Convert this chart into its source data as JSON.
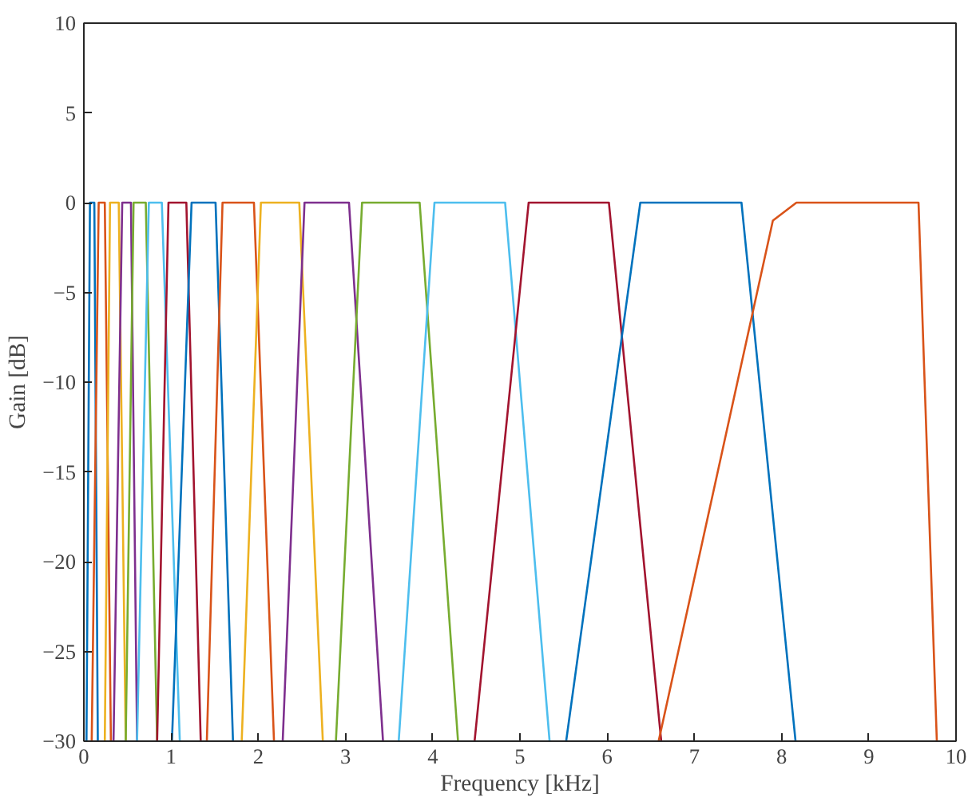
{
  "chart_data": {
    "type": "line",
    "xlabel": "Frequency [kHz]",
    "ylabel": "Gain [dB]",
    "xlim": [
      0,
      10
    ],
    "ylim": [
      -30,
      10
    ],
    "xticks": [
      0,
      1,
      2,
      3,
      4,
      5,
      6,
      7,
      8,
      9,
      10
    ],
    "yticks": [
      -30,
      -25,
      -20,
      -15,
      -10,
      -5,
      0,
      5,
      10
    ],
    "grid": false,
    "marker": "none",
    "line_style": "solid",
    "series": [
      {
        "color": "#0072bd",
        "x": [
          0.03,
          0.07,
          0.12,
          0.16
        ],
        "values": [
          -30,
          0,
          0,
          -30
        ]
      },
      {
        "color": "#d95319",
        "x": [
          0.09,
          0.17,
          0.24,
          0.31
        ],
        "values": [
          -30,
          0,
          0,
          -30
        ]
      },
      {
        "color": "#edb120",
        "x": [
          0.24,
          0.3,
          0.4,
          0.48
        ],
        "values": [
          -30,
          0,
          0,
          -30
        ]
      },
      {
        "color": "#7e2f8e",
        "x": [
          0.34,
          0.44,
          0.54,
          0.61
        ],
        "values": [
          -30,
          0,
          0,
          -30
        ]
      },
      {
        "color": "#77ac30",
        "x": [
          0.48,
          0.57,
          0.71,
          0.84
        ],
        "values": [
          -30,
          0,
          0,
          -30
        ]
      },
      {
        "color": "#4dbeee",
        "x": [
          0.61,
          0.745,
          0.894,
          1.1
        ],
        "values": [
          -30,
          0,
          0,
          -30
        ]
      },
      {
        "color": "#a2142f",
        "x": [
          0.84,
          0.97,
          1.175,
          1.34
        ],
        "values": [
          -30,
          0,
          0,
          -30
        ]
      },
      {
        "color": "#0072bd",
        "x": [
          1.01,
          1.235,
          1.51,
          1.71
        ],
        "values": [
          -30,
          0,
          0,
          -30
        ]
      },
      {
        "color": "#d95319",
        "x": [
          1.41,
          1.59,
          1.95,
          2.18
        ],
        "values": [
          -30,
          0,
          0,
          -30
        ]
      },
      {
        "color": "#edb120",
        "x": [
          1.81,
          2.03,
          2.47,
          2.74
        ],
        "values": [
          -30,
          0,
          0,
          -30
        ]
      },
      {
        "color": "#7e2f8e",
        "x": [
          2.28,
          2.53,
          3.04,
          3.43
        ],
        "values": [
          -30,
          0,
          0,
          -30
        ]
      },
      {
        "color": "#77ac30",
        "x": [
          2.89,
          3.19,
          3.85,
          4.29
        ],
        "values": [
          -30,
          0,
          0,
          -30
        ]
      },
      {
        "color": "#4dbeee",
        "x": [
          3.61,
          4.02,
          4.83,
          5.34
        ],
        "values": [
          -30,
          0,
          0,
          -30
        ]
      },
      {
        "color": "#a2142f",
        "x": [
          4.48,
          5.1,
          6.02,
          6.62
        ],
        "values": [
          -30,
          0,
          0,
          -30
        ]
      },
      {
        "color": "#0072bd",
        "x": [
          5.53,
          6.38,
          7.54,
          8.16
        ],
        "values": [
          -30,
          0,
          0,
          -30
        ]
      },
      {
        "color": "#d95319",
        "x": [
          6.59,
          7.9,
          8.17,
          9.57,
          9.78
        ],
        "values": [
          -30,
          -1,
          0,
          0,
          -30
        ]
      }
    ]
  }
}
